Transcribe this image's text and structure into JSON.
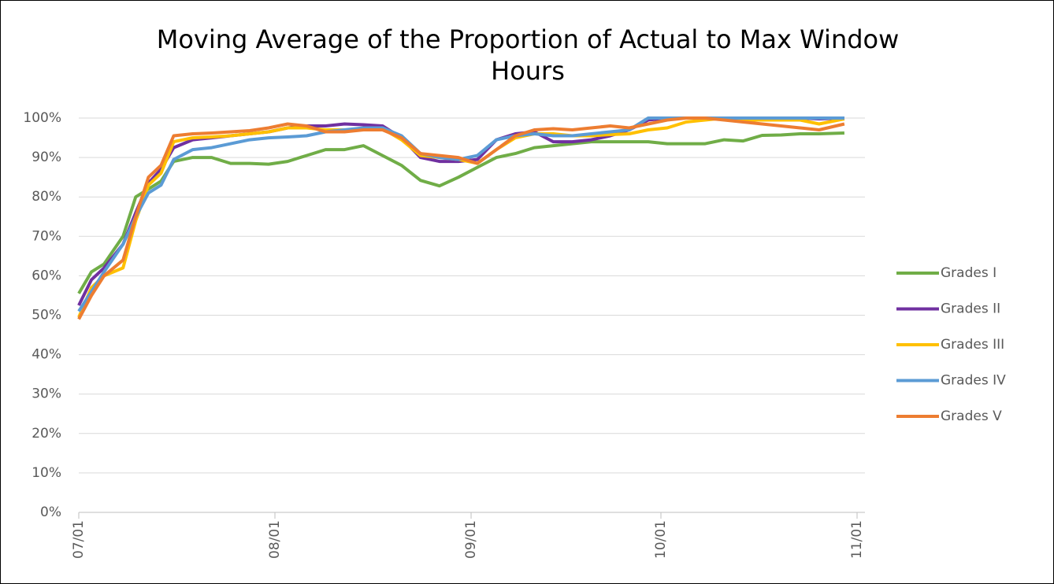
{
  "chart_data": {
    "type": "line",
    "title": "Moving Average of the Proportion of Actual to Max Window Hours",
    "x": [
      "07/01",
      "07/03",
      "07/05",
      "07/08",
      "07/10",
      "07/12",
      "07/14",
      "07/16",
      "07/19",
      "07/22",
      "07/25",
      "07/28",
      "07/31",
      "08/03",
      "08/06",
      "08/09",
      "08/12",
      "08/15",
      "08/18",
      "08/21",
      "08/24",
      "08/27",
      "08/30",
      "09/02",
      "09/05",
      "09/08",
      "09/11",
      "09/14",
      "09/17",
      "09/20",
      "09/23",
      "09/26",
      "09/29",
      "10/02",
      "10/05",
      "10/08",
      "10/11",
      "10/14",
      "10/17",
      "10/20",
      "10/23",
      "10/26",
      "10/30"
    ],
    "series": [
      {
        "name": "Grades I",
        "color": "#70ad47",
        "values": [
          55.5,
          61,
          63,
          70,
          80,
          82,
          84,
          89,
          90,
          90,
          88.5,
          88.5,
          88.3,
          89,
          90.5,
          92,
          92,
          93,
          90.5,
          88,
          84.2,
          82.8,
          85,
          87.5,
          90,
          91,
          92.5,
          93,
          93.5,
          94,
          94,
          94,
          94,
          93.5,
          93.5,
          93.5,
          94.5,
          94.2,
          95.6,
          95.7,
          96,
          96,
          96.2
        ]
      },
      {
        "name": "Grades II",
        "color": "#7030a0",
        "values": [
          52.5,
          59,
          62,
          68,
          76,
          83.5,
          87,
          92.5,
          94.5,
          95,
          95.5,
          96,
          96.5,
          97.5,
          98,
          98,
          98.5,
          98.3,
          98,
          95,
          90,
          89,
          89,
          89.5,
          94.5,
          96,
          96.5,
          94,
          94,
          94.5,
          95.5,
          97,
          99.5,
          100,
          100,
          100,
          100,
          100,
          100,
          100,
          100,
          99.8,
          100
        ]
      },
      {
        "name": "Grades III",
        "color": "#ffc000",
        "values": [
          49.5,
          57,
          60,
          62,
          74,
          83,
          86,
          94,
          95,
          95.2,
          95.5,
          96,
          96.5,
          97.5,
          97.5,
          97,
          97,
          97,
          97.3,
          94.5,
          90.5,
          90,
          89.5,
          88.5,
          92,
          95,
          96,
          96,
          95.5,
          95.5,
          95.8,
          96,
          97,
          97.5,
          99,
          99.5,
          100,
          99.5,
          99.5,
          99.5,
          99.5,
          98.5,
          99.8
        ]
      },
      {
        "name": "Grades IV",
        "color": "#5b9bd5",
        "values": [
          51,
          56,
          61,
          68,
          75,
          81,
          83,
          89.5,
          92,
          92.5,
          93.5,
          94.5,
          95,
          95.2,
          95.5,
          96.5,
          97,
          97.5,
          97.5,
          95.5,
          91,
          90,
          89.5,
          90.5,
          94.5,
          95.5,
          96,
          95.5,
          95.5,
          96,
          96.5,
          97,
          100,
          100,
          100,
          100,
          100,
          100,
          100,
          100,
          100,
          100,
          100
        ]
      },
      {
        "name": "Grades V",
        "color": "#ed7d31",
        "values": [
          49,
          55,
          60,
          64,
          75,
          85,
          88,
          95.5,
          96,
          96.2,
          96.5,
          96.8,
          97.5,
          98.5,
          98,
          96.5,
          96.5,
          97,
          97,
          95,
          91,
          90.5,
          90,
          88.5,
          92,
          95.5,
          97,
          97.3,
          97,
          97.5,
          98,
          97.5,
          98.5,
          99.5,
          100,
          100,
          99.5,
          99,
          98.5,
          98,
          97.5,
          97,
          98.5
        ]
      }
    ],
    "xlim": [
      "07/01",
      "11/01"
    ],
    "xticks": [
      "07/01",
      "08/01",
      "09/01",
      "10/01",
      "11/01"
    ],
    "ylim": [
      0,
      100
    ],
    "yticks": [
      {
        "value": 0,
        "label": "0%"
      },
      {
        "value": 10,
        "label": "10%"
      },
      {
        "value": 20,
        "label": "20%"
      },
      {
        "value": 30,
        "label": "30%"
      },
      {
        "value": 40,
        "label": "40%"
      },
      {
        "value": 50,
        "label": "50%"
      },
      {
        "value": 60,
        "label": "60%"
      },
      {
        "value": 70,
        "label": "70%"
      },
      {
        "value": 80,
        "label": "80%"
      },
      {
        "value": 90,
        "label": "90%"
      },
      {
        "value": 100,
        "label": "100%"
      }
    ],
    "grid": true,
    "legend": "right"
  }
}
